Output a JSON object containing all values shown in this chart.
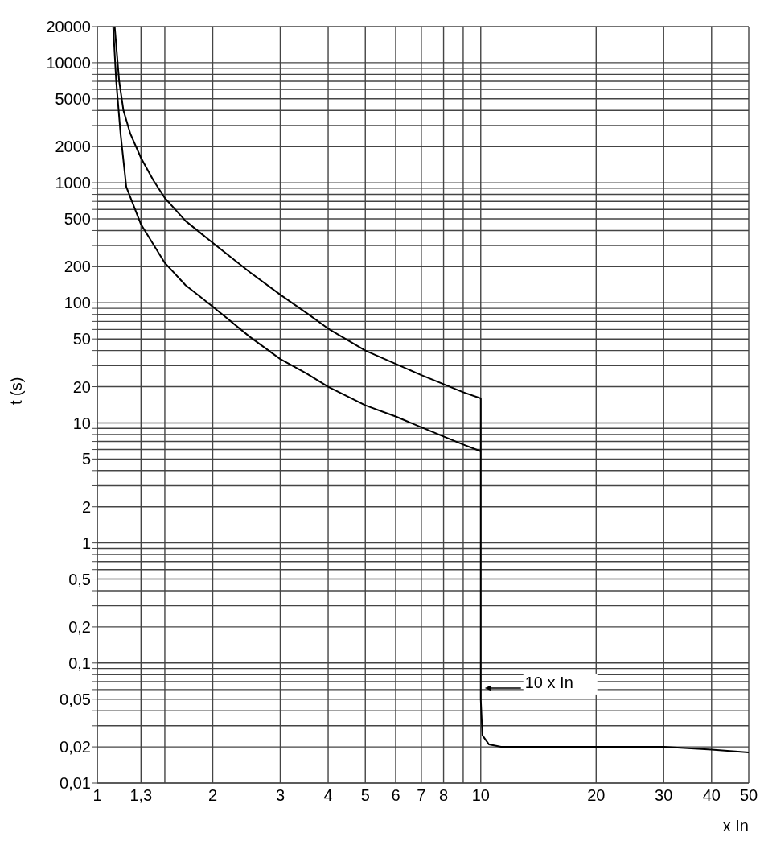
{
  "chart_data": {
    "type": "line",
    "xlabel": "x In",
    "ylabel": "t (s)",
    "log": "xy",
    "grid": true,
    "marker": "none",
    "line_style": "solid",
    "xlim": [
      1,
      50
    ],
    "xticks": [
      1,
      {
        "value": 1.3,
        "label": "1,3"
      },
      {
        "value": 1.5,
        "label": null
      },
      2,
      3,
      4,
      5,
      6,
      7,
      8,
      {
        "value": 9,
        "label": null
      },
      10,
      20,
      30,
      40,
      50
    ],
    "ylim": [
      0.01,
      20000
    ],
    "yticks": [
      {
        "value": 0.01,
        "label": "0,01"
      },
      {
        "value": 0.02,
        "label": "0,02"
      },
      {
        "value": 0.03,
        "label": null
      },
      {
        "value": 0.04,
        "label": null
      },
      {
        "value": 0.05,
        "label": "0,05"
      },
      {
        "value": 0.06,
        "label": null
      },
      {
        "value": 0.07,
        "label": null
      },
      {
        "value": 0.08,
        "label": null
      },
      {
        "value": 0.09,
        "label": null
      },
      {
        "value": 0.1,
        "label": "0,1"
      },
      {
        "value": 0.2,
        "label": "0,2"
      },
      {
        "value": 0.3,
        "label": null
      },
      {
        "value": 0.4,
        "label": null
      },
      {
        "value": 0.5,
        "label": "0,5"
      },
      {
        "value": 0.6,
        "label": null
      },
      {
        "value": 0.7,
        "label": null
      },
      {
        "value": 0.8,
        "label": null
      },
      {
        "value": 0.9,
        "label": null
      },
      1,
      2,
      {
        "value": 3,
        "label": null
      },
      {
        "value": 4,
        "label": null
      },
      5,
      {
        "value": 6,
        "label": null
      },
      {
        "value": 7,
        "label": null
      },
      {
        "value": 8,
        "label": null
      },
      {
        "value": 9,
        "label": null
      },
      10,
      20,
      {
        "value": 30,
        "label": null
      },
      {
        "value": 40,
        "label": null
      },
      50,
      {
        "value": 60,
        "label": null
      },
      {
        "value": 70,
        "label": null
      },
      {
        "value": 80,
        "label": null
      },
      {
        "value": 90,
        "label": null
      },
      100,
      200,
      {
        "value": 300,
        "label": null
      },
      {
        "value": 400,
        "label": null
      },
      500,
      {
        "value": 600,
        "label": null
      },
      {
        "value": 700,
        "label": null
      },
      {
        "value": 800,
        "label": null
      },
      {
        "value": 900,
        "label": null
      },
      1000,
      2000,
      {
        "value": 3000,
        "label": null
      },
      {
        "value": 4000,
        "label": null
      },
      5000,
      {
        "value": 6000,
        "label": null
      },
      {
        "value": 7000,
        "label": null
      },
      {
        "value": 8000,
        "label": null
      },
      {
        "value": 9000,
        "label": null
      },
      10000,
      20000
    ],
    "series": [
      {
        "color": "#000000",
        "x": [
          1.11,
          1.14,
          1.17,
          1.22,
          1.3,
          1.4,
          1.5,
          1.7,
          2,
          2.5,
          3,
          3.5,
          4,
          5,
          6,
          7,
          8,
          9,
          10,
          10,
          10.1,
          10.5,
          11.3,
          20,
          30,
          40,
          50
        ],
        "values": [
          20000,
          7100,
          4000,
          2550,
          1610,
          1050,
          747,
          480,
          316,
          180,
          117,
          83,
          61,
          40,
          31,
          25,
          21,
          18,
          16,
          0.05,
          0.025,
          0.021,
          0.02,
          0.02,
          0.02,
          0.019,
          0.018
        ]
      },
      {
        "color": "#000000",
        "x": [
          1.1,
          1.12,
          1.15,
          1.19,
          1.3,
          1.5,
          1.7,
          2,
          2.5,
          3,
          3.5,
          4,
          5,
          6,
          7,
          8,
          9,
          10
        ],
        "values": [
          20000,
          7100,
          2550,
          925,
          450,
          215,
          140,
          93,
          52,
          34,
          26,
          20,
          14,
          11.3,
          9.2,
          7.7,
          6.6,
          5.8
        ]
      }
    ],
    "annotations": [
      {
        "text": "10 x In",
        "x": 10,
        "y": 0.07
      }
    ]
  }
}
